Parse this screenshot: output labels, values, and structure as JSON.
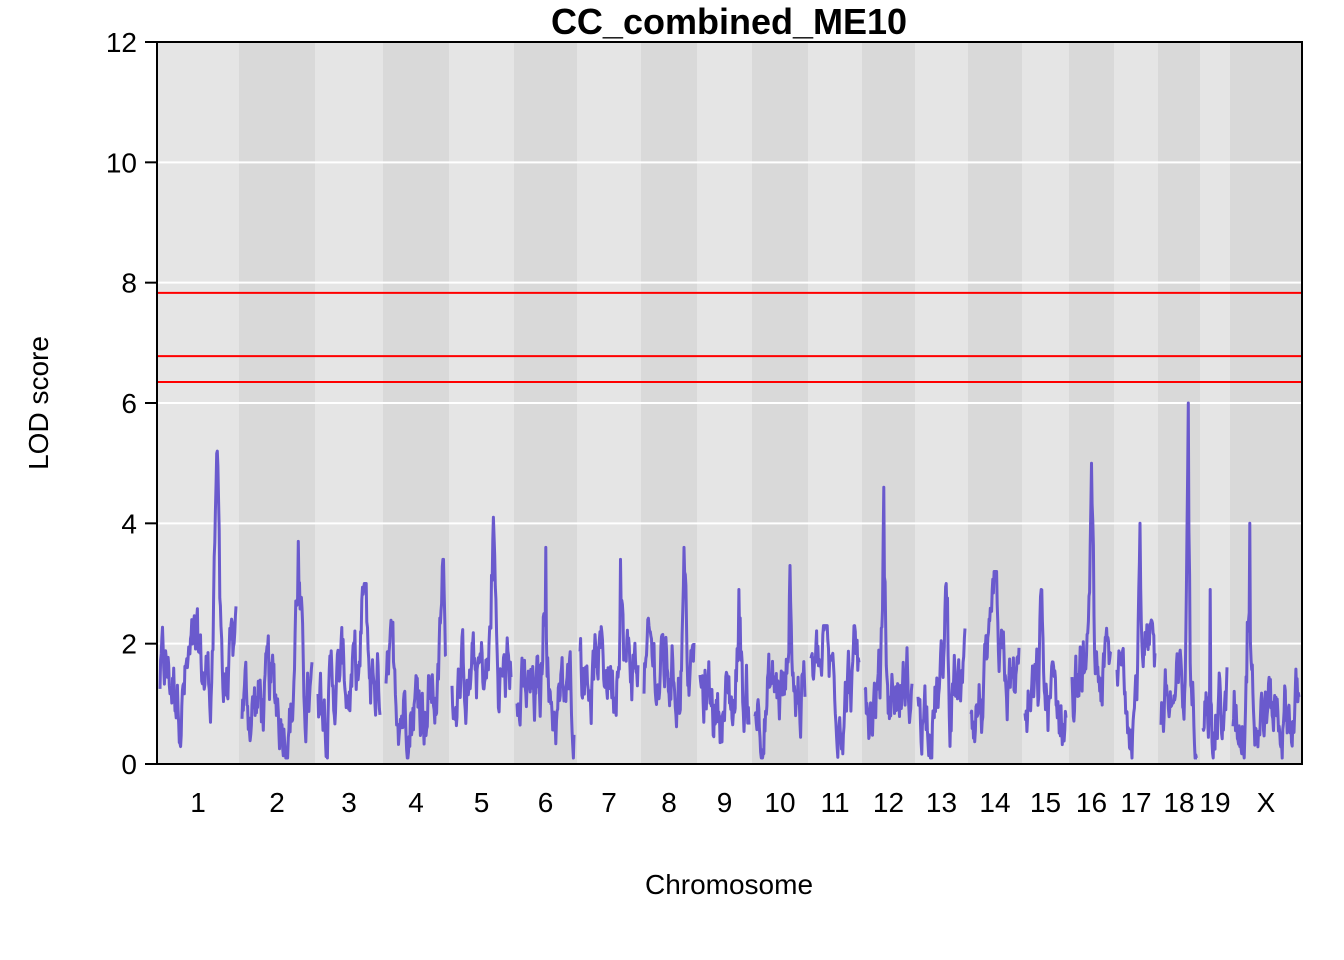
{
  "chart_data": {
    "type": "line",
    "title": "CC_combined_ME10",
    "xlabel": "Chromosome",
    "ylabel": "LOD score",
    "ylim": [
      0,
      12
    ],
    "yticks": [
      0,
      2,
      4,
      6,
      8,
      10,
      12
    ],
    "grid": true,
    "colors": {
      "line": "#6a5acd",
      "threshold": "#ff0000",
      "band_light": "#e5e5e5",
      "band_dark": "#d9d9d9",
      "gridline": "#ffffff"
    },
    "thresholds": [
      7.83,
      6.78,
      6.35
    ],
    "chromosomes": [
      {
        "label": "1",
        "max_lod": 5.2,
        "peak_pos": 0.75
      },
      {
        "label": "2",
        "max_lod": 3.7,
        "peak_pos": 0.8
      },
      {
        "label": "3",
        "max_lod": 3.0,
        "peak_pos": 0.75
      },
      {
        "label": "4",
        "max_lod": 3.4,
        "peak_pos": 0.95
      },
      {
        "label": "5",
        "max_lod": 4.1,
        "peak_pos": 0.7
      },
      {
        "label": "6",
        "max_lod": 3.6,
        "peak_pos": 0.5
      },
      {
        "label": "7",
        "max_lod": 3.4,
        "peak_pos": 0.7
      },
      {
        "label": "8",
        "max_lod": 3.6,
        "peak_pos": 0.8
      },
      {
        "label": "9",
        "max_lod": 2.9,
        "peak_pos": 0.8
      },
      {
        "label": "10",
        "max_lod": 3.3,
        "peak_pos": 0.7
      },
      {
        "label": "11",
        "max_lod": 2.3,
        "peak_pos": 0.3
      },
      {
        "label": "12",
        "max_lod": 4.6,
        "peak_pos": 0.4
      },
      {
        "label": "13",
        "max_lod": 3.0,
        "peak_pos": 0.6
      },
      {
        "label": "14",
        "max_lod": 3.2,
        "peak_pos": 0.5
      },
      {
        "label": "15",
        "max_lod": 2.9,
        "peak_pos": 0.4
      },
      {
        "label": "16",
        "max_lod": 5.0,
        "peak_pos": 0.5
      },
      {
        "label": "17",
        "max_lod": 4.0,
        "peak_pos": 0.6
      },
      {
        "label": "18",
        "max_lod": 6.0,
        "peak_pos": 0.75
      },
      {
        "label": "19",
        "max_lod": 2.9,
        "peak_pos": 0.3
      },
      {
        "label": "X",
        "max_lod": 4.0,
        "peak_pos": 0.25
      }
    ]
  }
}
